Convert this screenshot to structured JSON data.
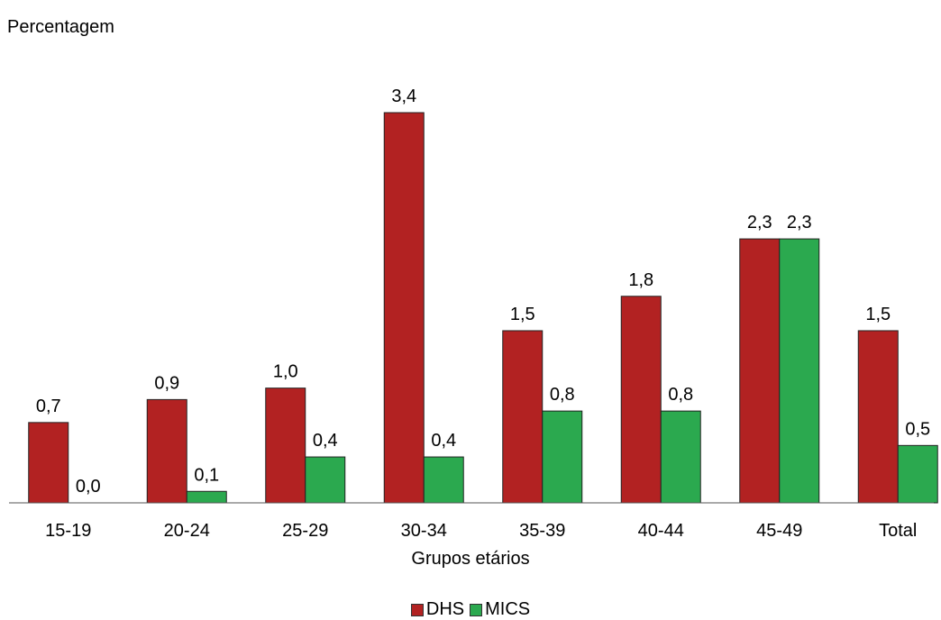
{
  "chart_data": {
    "type": "bar",
    "title": "",
    "ylabel": "Percentagem",
    "xlabel": "Grupos etários",
    "categories": [
      "15-19",
      "20-24",
      "25-29",
      "30-34",
      "35-39",
      "40-44",
      "45-49",
      "Total"
    ],
    "series": [
      {
        "name": "DHS",
        "color": "#b22222",
        "values": [
          0.7,
          0.9,
          1.0,
          3.4,
          1.5,
          1.8,
          2.3,
          1.5
        ],
        "labels": [
          "0,7",
          "0,9",
          "1,0",
          "3,4",
          "1,5",
          "1,8",
          "2,3",
          "1,5"
        ]
      },
      {
        "name": "MICS",
        "color": "#2ba94f",
        "values": [
          0.0,
          0.1,
          0.4,
          0.4,
          0.8,
          0.8,
          2.3,
          0.5
        ],
        "labels": [
          "0,0",
          "0,1",
          "0,4",
          "0,4",
          "0,8",
          "0,8",
          "2,3",
          "0,5"
        ]
      }
    ],
    "ylim": [
      0,
      3.4
    ],
    "grid": false,
    "legend_position": "bottom-center"
  }
}
